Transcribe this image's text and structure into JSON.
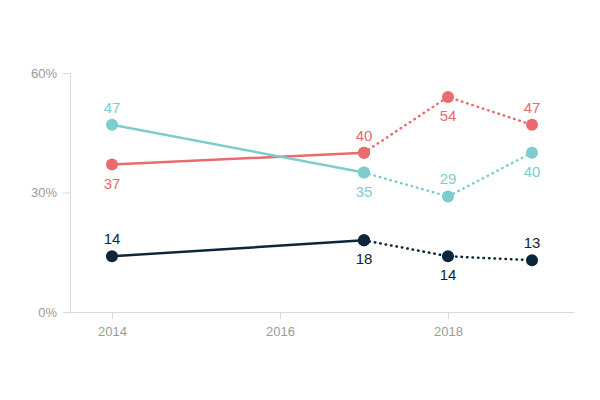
{
  "chart_data": {
    "type": "line",
    "x": [
      2014,
      2017,
      2018,
      2019
    ],
    "series": [
      {
        "color": "#e96b6d",
        "values": [
          37,
          40,
          null,
          null
        ],
        "line_style": "solid",
        "marker": "circle"
      },
      {
        "color": "#e96b6d",
        "values": [
          null,
          40,
          54,
          47
        ],
        "line_style": "dotted",
        "marker": "circle"
      },
      {
        "color": "#7dcdcd",
        "values": [
          47,
          35,
          null,
          null
        ],
        "line_style": "solid",
        "marker": "circle"
      },
      {
        "color": "#7dcdcd",
        "values": [
          null,
          35,
          29,
          40
        ],
        "line_style": "dotted",
        "marker": "circle"
      },
      {
        "color": "#0d2639",
        "values": [
          14,
          18,
          null,
          null
        ],
        "line_style": "solid",
        "marker": "circle"
      },
      {
        "color": "#0d2639",
        "values": [
          null,
          18,
          14,
          13
        ],
        "line_style": "dotted",
        "marker": "circle"
      }
    ],
    "xlim": [
      2013.5,
      2019.5
    ],
    "xticks": [
      2014,
      2016,
      2018
    ],
    "ylim": [
      0,
      60
    ],
    "yticks": [
      {
        "value": 0,
        "label": "0%"
      },
      {
        "value": 30,
        "label": "30%"
      },
      {
        "value": 60,
        "label": "60%"
      }
    ],
    "grid": false,
    "data_labels": true
  }
}
